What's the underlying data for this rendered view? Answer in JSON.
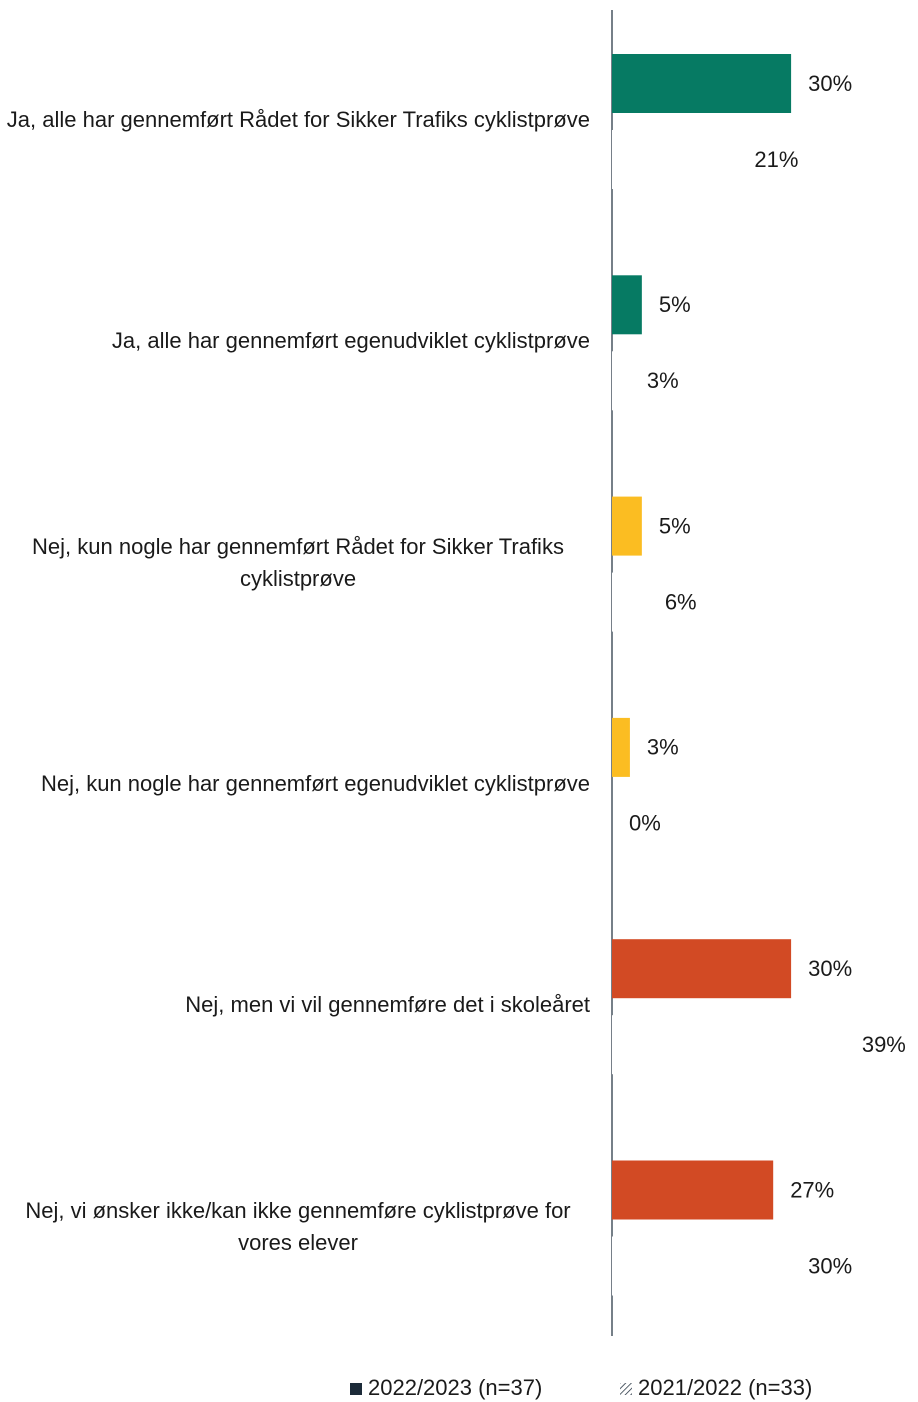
{
  "chart_data": {
    "type": "bar",
    "orientation": "horizontal",
    "categories": [
      "Ja, alle har gennemført Rådet for Sikker Trafiks cyklistprøve",
      "Ja, alle har gennemført egenudviklet cyklistprøve",
      "Nej, kun nogle har gennemført Rådet for Sikker Trafiks cyklistprøve",
      "Nej, kun nogle har gennemført egenudviklet cyklistprøve",
      "Nej, men vi vil gennemføre det i skoleåret",
      "Nej, vi ønsker ikke/kan ikke gennemføre cyklistprøve for vores elever"
    ],
    "series": [
      {
        "name": "2022/2023 (n=37)",
        "color": "#1c2b39",
        "colors": [
          "#067a63",
          "#067a63",
          "#fbbd22",
          "#fbbd22",
          "#d24a24",
          "#d24a24"
        ],
        "values": [
          30,
          5,
          5,
          3,
          30,
          27
        ],
        "value_labels": [
          "30%",
          "5%",
          "5%",
          "3%",
          "30%",
          "27%"
        ]
      },
      {
        "name": "2021/2022 (n=33)",
        "color": "#ffffff",
        "values": [
          21,
          3,
          6,
          0,
          39,
          30
        ],
        "value_labels": [
          "21%",
          "3%",
          "6%",
          "0%",
          "39%",
          "30%"
        ]
      }
    ],
    "legend": "bottom"
  }
}
